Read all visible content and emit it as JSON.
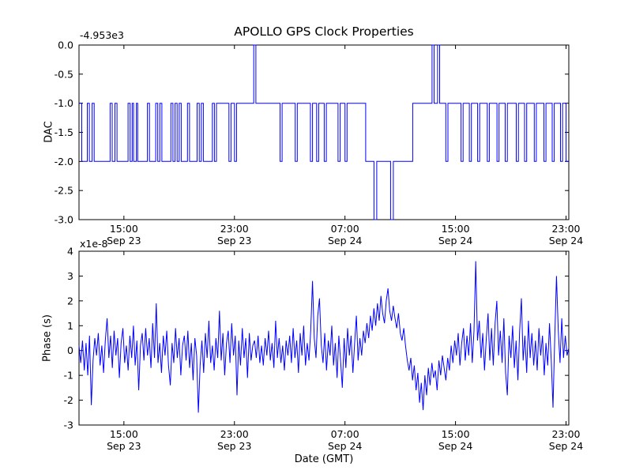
{
  "figure": {
    "title": "APOLLO GPS Clock Properties",
    "xlabel": "Date (GMT)",
    "background": "#ffffff",
    "axis_color": "#000000"
  },
  "chart_data": [
    {
      "type": "line",
      "title": "APOLLO GPS Clock Properties",
      "ylabel": "DAC",
      "offset_text": "-4.953e3",
      "ylim": [
        -3.0,
        0.0
      ],
      "ytick_values": [
        0.0,
        -0.5,
        -1.0,
        -1.5,
        -2.0,
        -2.5,
        -3.0
      ],
      "ytick_labels": [
        "0.0",
        "-0.5",
        "-1.0",
        "-1.5",
        "-2.0",
        "-2.5",
        "-3.0"
      ],
      "xlim": [
        11.75,
        47.2
      ],
      "xtick_values": [
        15,
        23,
        31,
        39,
        47
      ],
      "xtick_labels_time": [
        "15:00",
        "23:00",
        "07:00",
        "15:00",
        "23:00"
      ],
      "xtick_labels_date": [
        "Sep 23",
        "Sep 23",
        "Sep 24",
        "Sep 24",
        "Sep 24"
      ],
      "line_color": "#0000ff",
      "grid": false,
      "series": {
        "mode": "step",
        "points": [
          [
            11.75,
            -1
          ],
          [
            11.95,
            -2
          ],
          [
            12.35,
            -1
          ],
          [
            12.5,
            -2
          ],
          [
            12.7,
            -1
          ],
          [
            12.85,
            -2
          ],
          [
            14.0,
            -1
          ],
          [
            14.15,
            -2
          ],
          [
            14.35,
            -1
          ],
          [
            14.5,
            -2
          ],
          [
            15.3,
            -1
          ],
          [
            15.45,
            -2
          ],
          [
            15.6,
            -1
          ],
          [
            15.7,
            -2
          ],
          [
            15.9,
            -1
          ],
          [
            16.0,
            -2
          ],
          [
            16.7,
            -1
          ],
          [
            16.85,
            -2
          ],
          [
            17.3,
            -1
          ],
          [
            17.45,
            -2
          ],
          [
            17.6,
            -1
          ],
          [
            17.75,
            -2
          ],
          [
            18.4,
            -1
          ],
          [
            18.55,
            -2
          ],
          [
            18.7,
            -1
          ],
          [
            18.85,
            -2
          ],
          [
            19.0,
            -1
          ],
          [
            19.15,
            -2
          ],
          [
            19.6,
            -1
          ],
          [
            19.75,
            -2
          ],
          [
            20.3,
            -1
          ],
          [
            20.45,
            -2
          ],
          [
            20.6,
            -1
          ],
          [
            20.75,
            -2
          ],
          [
            21.4,
            -1
          ],
          [
            21.55,
            -2
          ],
          [
            21.7,
            -1
          ],
          [
            22.6,
            -2
          ],
          [
            22.75,
            -1
          ],
          [
            23.0,
            -2
          ],
          [
            23.15,
            -1
          ],
          [
            24.4,
            0
          ],
          [
            24.55,
            -1
          ],
          [
            26.3,
            -2
          ],
          [
            26.45,
            -1
          ],
          [
            27.4,
            -2
          ],
          [
            27.55,
            -1
          ],
          [
            28.5,
            -2
          ],
          [
            28.65,
            -1
          ],
          [
            28.95,
            -2
          ],
          [
            29.1,
            -1
          ],
          [
            29.5,
            -2
          ],
          [
            29.65,
            -1
          ],
          [
            30.5,
            -2
          ],
          [
            30.65,
            -1
          ],
          [
            31.0,
            -2
          ],
          [
            31.15,
            -1
          ],
          [
            32.5,
            -2
          ],
          [
            33.1,
            -3
          ],
          [
            33.3,
            -2
          ],
          [
            34.3,
            -3
          ],
          [
            34.5,
            -2
          ],
          [
            35.9,
            -1
          ],
          [
            37.3,
            0
          ],
          [
            37.45,
            -1
          ],
          [
            37.7,
            0
          ],
          [
            37.85,
            -1
          ],
          [
            38.3,
            -2
          ],
          [
            38.45,
            -1
          ],
          [
            39.4,
            -2
          ],
          [
            39.55,
            -1
          ],
          [
            40.0,
            -2
          ],
          [
            40.15,
            -1
          ],
          [
            40.6,
            -2
          ],
          [
            40.75,
            -1
          ],
          [
            41.3,
            -2
          ],
          [
            41.45,
            -1
          ],
          [
            42.0,
            -2
          ],
          [
            42.15,
            -1
          ],
          [
            42.6,
            -2
          ],
          [
            42.75,
            -1
          ],
          [
            43.4,
            -2
          ],
          [
            43.55,
            -1
          ],
          [
            44.0,
            -2
          ],
          [
            44.15,
            -1
          ],
          [
            44.7,
            -2
          ],
          [
            44.85,
            -1
          ],
          [
            45.4,
            -2
          ],
          [
            45.55,
            -1
          ],
          [
            46.0,
            -2
          ],
          [
            46.15,
            -1
          ],
          [
            46.6,
            -2
          ],
          [
            46.75,
            -1
          ],
          [
            47.0,
            -2
          ],
          [
            47.2,
            -2
          ]
        ]
      }
    },
    {
      "type": "line",
      "ylabel": "Phase (s)",
      "multiplier_text": "x1e-8",
      "xlabel": "Date (GMT)",
      "ylim": [
        -3,
        4
      ],
      "ytick_values": [
        4,
        3,
        2,
        1,
        0,
        -1,
        -2,
        -3
      ],
      "ytick_labels": [
        "4",
        "3",
        "2",
        "1",
        "0",
        "-1",
        "-2",
        "-3"
      ],
      "xlim": [
        11.75,
        47.2
      ],
      "xtick_values": [
        15,
        23,
        31,
        39,
        47
      ],
      "xtick_labels_time": [
        "15:00",
        "23:00",
        "07:00",
        "15:00",
        "23:00"
      ],
      "xtick_labels_date": [
        "Sep 23",
        "Sep 23",
        "Sep 24",
        "Sep 24",
        "Sep 24"
      ],
      "line_color": "#0000ff",
      "grid": false,
      "series": {
        "mode": "line",
        "unit": "1e-8 s",
        "values": [
          0.2,
          -0.5,
          0.4,
          -0.8,
          0.3,
          -1.0,
          0.6,
          -2.2,
          -0.4,
          0.5,
          -0.2,
          0.7,
          -0.6,
          0.2,
          -0.9,
          0.4,
          1.3,
          -0.3,
          0.6,
          -0.7,
          0.8,
          -0.2,
          0.5,
          -1.1,
          0.3,
          0.9,
          -0.5,
          0.2,
          -0.8,
          0.6,
          -0.3,
          1.0,
          -0.6,
          0.4,
          -1.6,
          0.2,
          0.7,
          -0.4,
          0.9,
          -0.2,
          0.5,
          -0.7,
          1.1,
          -0.3,
          1.9,
          -0.5,
          0.3,
          -0.9,
          0.6,
          -0.2,
          0.8,
          -0.6,
          -1.4,
          0.3,
          -0.5,
          0.9,
          -0.3,
          0.5,
          -1.0,
          0.2,
          0.6,
          -0.4,
          0.8,
          -0.7,
          0.3,
          -1.2,
          0.5,
          -0.2,
          -2.5,
          -0.6,
          0.4,
          -0.9,
          0.7,
          -0.3,
          1.2,
          -0.5,
          0.2,
          -0.8,
          0.5,
          -0.3,
          1.6,
          -0.4,
          0.7,
          -1.0,
          0.3,
          0.8,
          -0.5,
          1.1,
          -0.2,
          0.6,
          -1.8,
          0.4,
          -0.6,
          0.9,
          -0.3,
          0.5,
          -1.1,
          0.7,
          -0.4,
          0.2,
          0.4,
          -0.3,
          0.6,
          -0.5,
          0.2,
          -0.6,
          0.5,
          -0.2,
          0.8,
          -0.4,
          0.3,
          -0.7,
          1.2,
          -0.3,
          0.5,
          -0.5,
          0.2,
          -0.8,
          0.4,
          -0.2,
          0.6,
          -0.5,
          0.9,
          -0.3,
          0.4,
          -0.9,
          0.7,
          -0.2,
          1.0,
          -0.6,
          0.3,
          -0.4,
          0.8,
          2.8,
          0.5,
          -0.3,
          1.4,
          2.1,
          0.2,
          -0.5,
          0.7,
          -0.8,
          0.4,
          -0.2,
          1.0,
          -0.6,
          0.3,
          -1.1,
          0.6,
          -0.4,
          -1.5,
          0.5,
          -0.7,
          0.9,
          -0.2,
          0.6,
          -0.9,
          0.3,
          1.4,
          -0.4,
          0.5,
          -0.2,
          0.8,
          0.3,
          1.1,
          0.5,
          1.4,
          0.8,
          1.7,
          1.0,
          1.9,
          1.2,
          2.2,
          1.5,
          1.1,
          2.0,
          2.5,
          1.6,
          1.2,
          1.8,
          1.3,
          0.9,
          1.5,
          0.7,
          0.4,
          0.9,
          0.2,
          -0.4,
          -0.8,
          -0.3,
          -1.2,
          -0.6,
          -1.6,
          -0.9,
          -2.1,
          -1.3,
          -2.4,
          -1.0,
          -1.8,
          -0.7,
          -1.4,
          -0.5,
          -1.1,
          -0.8,
          -1.6,
          -0.4,
          -1.0,
          -0.2,
          -0.7,
          -1.2,
          -0.3,
          -0.8,
          0.2,
          -0.5,
          0.4,
          -0.2,
          0.7,
          -0.6,
          0.3,
          0.9,
          -0.4,
          0.6,
          -0.2,
          1.1,
          -0.5,
          0.8,
          3.6,
          0.4,
          1.2,
          -0.3,
          0.7,
          -0.8,
          0.5,
          1.5,
          -0.4,
          0.9,
          -0.6,
          1.1,
          2.0,
          -0.2,
          0.8,
          -0.5,
          1.3,
          -0.9,
          -1.8,
          0.6,
          -0.3,
          1.0,
          -0.7,
          0.4,
          -1.2,
          0.8,
          2.1,
          -0.4,
          0.6,
          -0.9,
          1.2,
          -0.3,
          0.7,
          -0.6,
          0.4,
          -0.8,
          0.9,
          -0.2,
          0.6,
          -1.0,
          0.3,
          -0.6,
          1.1,
          -0.4,
          -2.3,
          0.5,
          3.0,
          0.8,
          -0.5,
          1.3,
          -0.3,
          0.6,
          -0.2,
          0.1
        ]
      }
    }
  ]
}
